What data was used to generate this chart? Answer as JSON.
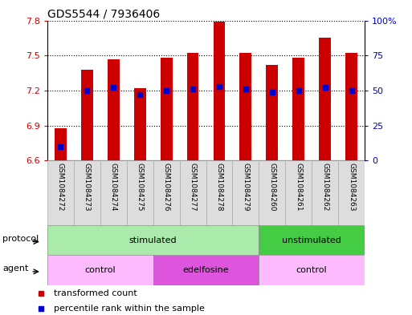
{
  "title": "GDS5544 / 7936406",
  "samples": [
    "GSM1084272",
    "GSM1084273",
    "GSM1084274",
    "GSM1084275",
    "GSM1084276",
    "GSM1084277",
    "GSM1084278",
    "GSM1084279",
    "GSM1084260",
    "GSM1084261",
    "GSM1084262",
    "GSM1084263"
  ],
  "transformed_count": [
    6.88,
    7.38,
    7.47,
    7.22,
    7.48,
    7.52,
    7.79,
    7.52,
    7.42,
    7.48,
    7.65,
    7.52
  ],
  "percentile_rank": [
    10,
    50,
    52,
    47,
    50,
    51,
    53,
    51,
    49,
    50,
    52,
    50
  ],
  "ylim_left": [
    6.6,
    7.8
  ],
  "ylim_right": [
    0,
    100
  ],
  "yticks_left": [
    6.6,
    6.9,
    7.2,
    7.5,
    7.8
  ],
  "yticks_right": [
    0,
    25,
    50,
    75,
    100
  ],
  "bar_color": "#cc0000",
  "dot_color": "#0000cc",
  "bar_width": 0.45,
  "protocol_labels": [
    {
      "text": "stimulated",
      "start": 0,
      "end": 7,
      "color": "#aaeaaa"
    },
    {
      "text": "unstimulated",
      "start": 8,
      "end": 11,
      "color": "#44cc44"
    }
  ],
  "agent_labels": [
    {
      "text": "control",
      "start": 0,
      "end": 3,
      "color": "#ffbbff"
    },
    {
      "text": "edelfosine",
      "start": 4,
      "end": 7,
      "color": "#dd55dd"
    },
    {
      "text": "control",
      "start": 8,
      "end": 11,
      "color": "#ffbbff"
    }
  ],
  "protocol_row_label": "protocol",
  "agent_row_label": "agent",
  "legend_bar_label": "transformed count",
  "legend_dot_label": "percentile rank within the sample",
  "bg_color": "#ffffff",
  "plot_bg_color": "#ffffff",
  "axis_color_left": "#cc0000",
  "axis_color_right": "#0000cc",
  "label_col_bg": "#dddddd",
  "label_col_edge": "#aaaaaa",
  "title_fontsize": 10,
  "tick_fontsize": 8,
  "row_label_fontsize": 8,
  "row_text_fontsize": 8,
  "legend_fontsize": 8
}
